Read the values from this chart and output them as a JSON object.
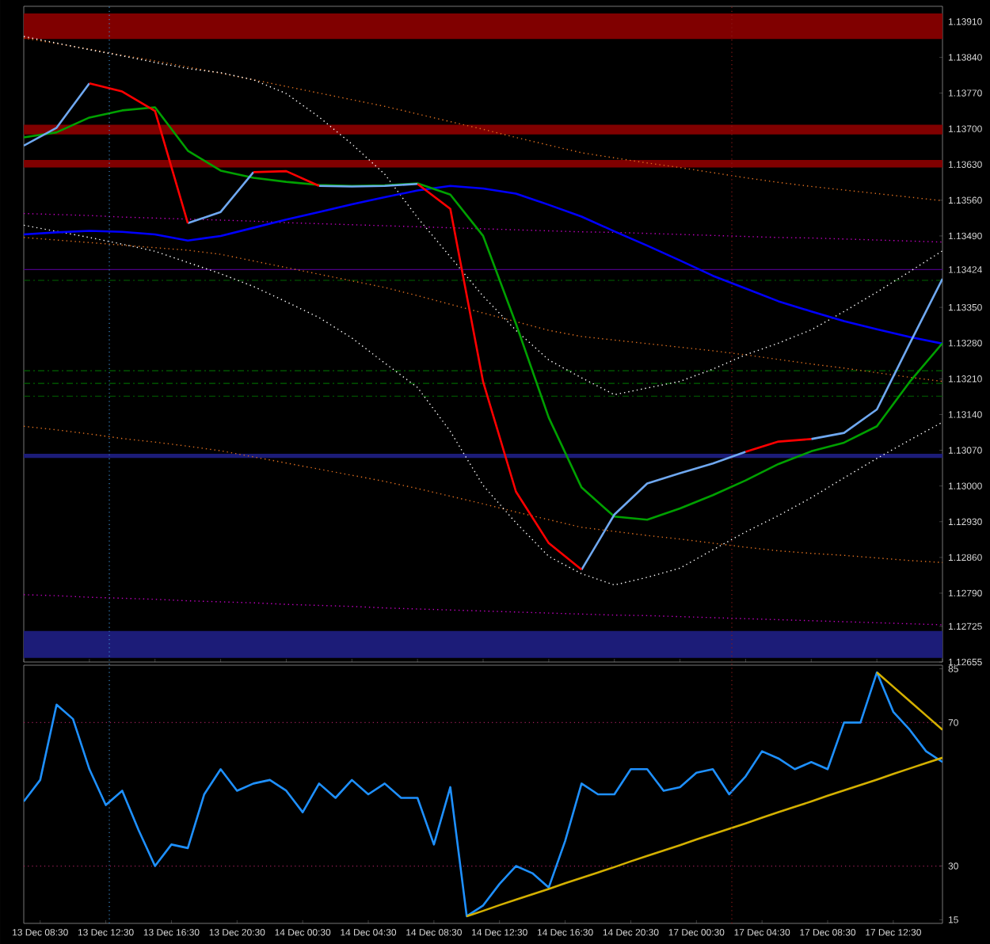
{
  "chart_data": [
    {
      "type": "line",
      "categories": [
        null,
        null,
        null,
        null,
        null,
        null,
        null,
        null,
        null,
        null,
        null,
        null,
        null,
        null,
        null,
        null,
        null,
        null,
        null,
        null,
        null,
        null,
        null,
        null,
        null,
        null,
        null,
        null,
        null
      ],
      "ylim": [
        1.12655,
        1.1394
      ],
      "yticks": [
        {
          "value": 1.12655,
          "label": "1.12655"
        },
        {
          "value": 1.12725,
          "label": "1.12725"
        },
        {
          "value": 1.1279,
          "label": "1.12790"
        },
        {
          "value": 1.1286,
          "label": "1.12860"
        },
        {
          "value": 1.1293,
          "label": "1.12930"
        },
        {
          "value": 1.13,
          "label": "1.13000"
        },
        {
          "value": 1.1307,
          "label": "1.13070"
        },
        {
          "value": 1.1314,
          "label": "1.13140"
        },
        {
          "value": 1.1321,
          "label": "1.13210"
        },
        {
          "value": 1.1328,
          "label": "1.13280"
        },
        {
          "value": 1.1335,
          "label": "1.13350"
        },
        {
          "value": 1.13424,
          "label": "1.13424"
        },
        {
          "value": 1.1349,
          "label": "1.13490"
        },
        {
          "value": 1.1356,
          "label": "1.13560"
        },
        {
          "value": 1.1363,
          "label": "1.13630"
        },
        {
          "value": 1.137,
          "label": "1.13700"
        },
        {
          "value": 1.1377,
          "label": "1.13770"
        },
        {
          "value": 1.1384,
          "label": "1.13840"
        },
        {
          "value": 1.1391,
          "label": "1.13910"
        }
      ],
      "tick_labels": "y",
      "bands": [
        {
          "axis": "y",
          "from": 1.13876,
          "to": 1.13926,
          "color": "#800000"
        },
        {
          "axis": "y",
          "from": 1.13689,
          "to": 1.13708,
          "color": "#800000"
        },
        {
          "axis": "y",
          "from": 1.13624,
          "to": 1.13639,
          "color": "#800000"
        },
        {
          "axis": "y",
          "from": 1.12663,
          "to": 1.12716,
          "color": "#1c1c78"
        },
        {
          "axis": "y",
          "from": 1.13055,
          "to": 1.13063,
          "color": "#1c1c78"
        }
      ],
      "ref_lines": [
        {
          "axis": "y",
          "value": 1.13403,
          "color": "#006400",
          "line_style": "dashed"
        },
        {
          "axis": "y",
          "value": 1.13226,
          "color": "#006400",
          "line_style": "dashed"
        },
        {
          "axis": "y",
          "value": 1.13201,
          "color": "#006400",
          "line_style": "dashed"
        },
        {
          "axis": "y",
          "value": 1.13176,
          "color": "#006400",
          "line_style": "dashed"
        },
        {
          "axis": "y",
          "value": 1.13424,
          "color": "#4b0082",
          "line_style": "solid"
        }
      ],
      "series": [
        {
          "color": "#e07020",
          "line_style": "dotted",
          "values": [
            1.13878,
            1.13867,
            1.13856,
            1.13844,
            1.13833,
            1.13821,
            1.13809,
            1.13796,
            1.13783,
            1.1377,
            1.13757,
            1.13744,
            1.13729,
            1.13714,
            1.13699,
            1.13683,
            1.13668,
            1.13653,
            1.13643,
            1.13633,
            1.13624,
            1.13614,
            1.13604,
            1.13595,
            1.13587,
            1.1358,
            1.13573,
            1.13566,
            1.13559
          ]
        },
        {
          "color": "#e07020",
          "line_style": "dotted",
          "values": [
            1.13487,
            1.13482,
            1.13477,
            1.13472,
            1.13467,
            1.13462,
            1.13454,
            1.13441,
            1.13428,
            1.13415,
            1.13402,
            1.13389,
            1.13373,
            1.13356,
            1.13339,
            1.13322,
            1.13305,
            1.13293,
            1.13286,
            1.13279,
            1.13272,
            1.13265,
            1.13257,
            1.13248,
            1.13239,
            1.13231,
            1.13222,
            1.13213,
            1.13205
          ]
        },
        {
          "color": "#e07020",
          "line_style": "dotted",
          "values": [
            1.13117,
            1.1311,
            1.13102,
            1.13093,
            1.13086,
            1.13078,
            1.13069,
            1.13057,
            1.13045,
            1.13033,
            1.13021,
            1.13009,
            1.12995,
            1.1298,
            1.12965,
            1.12949,
            1.12934,
            1.12919,
            1.12911,
            1.12903,
            1.12896,
            1.12888,
            1.1288,
            1.12873,
            1.12868,
            1.12864,
            1.12859,
            1.12854,
            1.1285
          ]
        },
        {
          "color": "#c000c0",
          "line_style": "dotted",
          "values": [
            1.13534,
            1.13532,
            1.1353,
            1.13527,
            1.13525,
            1.13523,
            1.13521,
            1.13519,
            1.13516,
            1.13514,
            1.13512,
            1.1351,
            1.13508,
            1.13506,
            1.13504,
            1.13502,
            1.135,
            1.13498,
            1.13497,
            1.13495,
            1.13493,
            1.13491,
            1.13489,
            1.13487,
            1.13486,
            1.13484,
            1.13482,
            1.1348,
            1.13478
          ]
        },
        {
          "color": "#c000c0",
          "line_style": "dotted",
          "values": [
            1.12787,
            1.12785,
            1.12782,
            1.1278,
            1.12778,
            1.12775,
            1.12773,
            1.12771,
            1.12768,
            1.12766,
            1.12764,
            1.12761,
            1.12759,
            1.12757,
            1.12755,
            1.12753,
            1.12751,
            1.12749,
            1.12747,
            1.12746,
            1.12744,
            1.12742,
            1.1274,
            1.12738,
            1.12736,
            1.12734,
            1.12732,
            1.1273,
            1.12728
          ]
        },
        {
          "color": "#ffffff",
          "line_style": "dotted",
          "values": [
            1.13881,
            1.13868,
            1.13855,
            1.13843,
            1.1383,
            1.13818,
            1.1381,
            1.13796,
            1.13769,
            1.13723,
            1.1367,
            1.13611,
            1.13526,
            1.13449,
            1.13372,
            1.13305,
            1.13247,
            1.13212,
            1.13179,
            1.13192,
            1.13205,
            1.13229,
            1.13257,
            1.1328,
            1.13306,
            1.13342,
            1.1338,
            1.1342,
            1.13461
          ]
        },
        {
          "color": "#ffffff",
          "line_style": "dotted",
          "values": [
            1.13511,
            1.13499,
            1.13487,
            1.13474,
            1.1346,
            1.13438,
            1.13416,
            1.13391,
            1.13361,
            1.1333,
            1.1329,
            1.13241,
            1.13193,
            1.13107,
            1.13001,
            1.12928,
            1.12862,
            1.12828,
            1.12806,
            1.12821,
            1.12839,
            1.12875,
            1.1291,
            1.12942,
            1.12977,
            1.13016,
            1.13054,
            1.1309,
            1.13125
          ]
        },
        {
          "color": "#0000ff",
          "line_style": "solid",
          "values": [
            1.13493,
            1.13497,
            1.135,
            1.13498,
            1.13493,
            1.13481,
            1.1349,
            1.13506,
            1.13522,
            1.13537,
            1.13552,
            1.13566,
            1.13579,
            1.13588,
            1.13583,
            1.13573,
            1.13551,
            1.13528,
            1.13499,
            1.13471,
            1.13442,
            1.13412,
            1.13387,
            1.13362,
            1.13342,
            1.13323,
            1.13307,
            1.13292,
            1.13279
          ]
        },
        {
          "color": "#00a000",
          "line_style": "solid",
          "values": [
            1.13683,
            1.13693,
            1.13722,
            1.13736,
            1.13742,
            1.13657,
            1.13618,
            1.13604,
            1.13596,
            1.1359,
            1.13588,
            1.13589,
            1.13593,
            1.13571,
            1.1349,
            1.13318,
            1.13134,
            1.12997,
            1.1294,
            1.12934,
            1.12956,
            1.12982,
            1.13011,
            1.13043,
            1.13068,
            1.13085,
            1.13117,
            1.13204,
            1.1328
          ]
        },
        {
          "color": "#6fa8f0",
          "line_style": "solid",
          "values": [
            1.13667,
            1.13702,
            1.13789,
            null,
            null,
            1.13515,
            1.13537,
            1.13615,
            null,
            1.13588,
            1.13587,
            1.13588,
            1.13592,
            null,
            null,
            null,
            null,
            1.12836,
            1.12944,
            1.13005,
            1.13025,
            1.13044,
            1.13067,
            null,
            1.13092,
            1.13104,
            1.1315,
            1.13279,
            1.13406
          ]
        },
        {
          "color": "#ff0000",
          "line_style": "solid",
          "values": [
            null,
            null,
            1.13789,
            1.13773,
            1.13735,
            1.13515,
            null,
            1.13615,
            1.13617,
            1.13588,
            null,
            null,
            1.13592,
            1.13543,
            1.13204,
            1.12989,
            1.12888,
            1.12836,
            null,
            null,
            null,
            null,
            1.13067,
            1.13087,
            1.13092,
            null,
            null,
            null,
            null
          ]
        }
      ]
    },
    {
      "type": "line",
      "categories": [
        null,
        "13 Dec 08:30",
        null,
        null,
        null,
        "13 Dec 12:30",
        null,
        null,
        null,
        "13 Dec 16:30",
        null,
        null,
        null,
        "13 Dec 20:30",
        null,
        null,
        null,
        "14 Dec 00:30",
        null,
        null,
        null,
        "14 Dec 04:30",
        null,
        null,
        null,
        "14 Dec 08:30",
        null,
        null,
        null,
        "14 Dec 12:30",
        null,
        null,
        null,
        "14 Dec 16:30",
        null,
        null,
        null,
        "14 Dec 20:30",
        null,
        null,
        null,
        "17 Dec 00:30",
        null,
        null,
        null,
        "17 Dec 04:30",
        null,
        null,
        null,
        "17 Dec 08:30",
        null,
        null,
        null,
        "17 Dec 12:30",
        null,
        null,
        null
      ],
      "ylim": [
        14,
        86
      ],
      "yticks": [
        15,
        30,
        70,
        85
      ],
      "ref_lines": [
        {
          "axis": "y",
          "value": 70,
          "color": "#a0205a",
          "line_style": "dotted"
        },
        {
          "axis": "y",
          "value": 30,
          "color": "#a0205a",
          "line_style": "dotted"
        }
      ],
      "series": [
        {
          "color": "#1e90ff",
          "line_style": "solid",
          "values": [
            48,
            54,
            75,
            71,
            57,
            47,
            51,
            40,
            30,
            36,
            35,
            50,
            57,
            51,
            53,
            54,
            51,
            45,
            53,
            49,
            54,
            50,
            53,
            49,
            49,
            36,
            52,
            16,
            19,
            25,
            30,
            28,
            24,
            37,
            53,
            50,
            50,
            57,
            57,
            51,
            52,
            56,
            57,
            50,
            55,
            62,
            60,
            57,
            59,
            57,
            70,
            70,
            84,
            73,
            68,
            62,
            59
          ]
        },
        {
          "color": "#d4b000",
          "line_style": "solid",
          "values": [
            null,
            null,
            null,
            null,
            null,
            null,
            null,
            null,
            null,
            null,
            null,
            null,
            null,
            null,
            null,
            null,
            null,
            null,
            null,
            null,
            null,
            null,
            null,
            null,
            null,
            null,
            null,
            16,
            17.5,
            19.1,
            20.6,
            22.1,
            23.6,
            25.2,
            26.7,
            28.2,
            29.7,
            31.3,
            32.8,
            34.3,
            35.8,
            37.4,
            38.9,
            40.4,
            41.9,
            43.5,
            45,
            46.5,
            48,
            49.6,
            51.1,
            52.6,
            54.1,
            55.7,
            57.2,
            58.7,
            60.2
          ]
        },
        {
          "color": "#d4b000",
          "line_style": "solid",
          "values": [
            null,
            null,
            null,
            null,
            null,
            null,
            null,
            null,
            null,
            null,
            null,
            null,
            null,
            null,
            null,
            null,
            null,
            null,
            null,
            null,
            null,
            null,
            null,
            null,
            null,
            null,
            null,
            null,
            null,
            null,
            null,
            null,
            null,
            null,
            null,
            null,
            null,
            null,
            null,
            null,
            null,
            null,
            null,
            null,
            null,
            null,
            null,
            null,
            null,
            null,
            null,
            null,
            84,
            80,
            76,
            72,
            68
          ]
        }
      ]
    }
  ]
}
